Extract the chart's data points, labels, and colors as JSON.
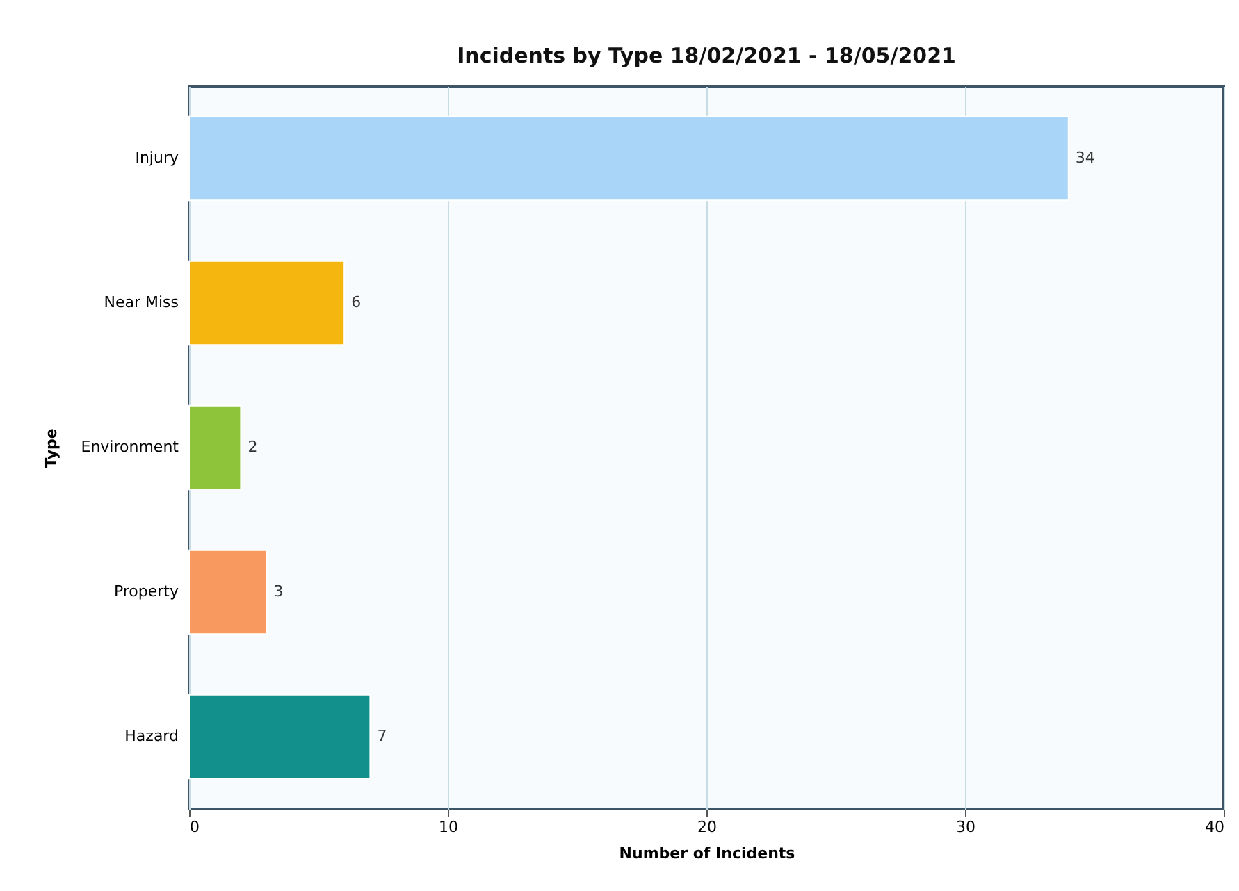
{
  "chart_data": {
    "type": "bar",
    "orientation": "horizontal",
    "title": "Incidents by Type 18/02/2021 - 18/05/2021",
    "xlabel": "Number of Incidents",
    "ylabel": "Type",
    "categories": [
      "Injury",
      "Near Miss",
      "Environment",
      "Property",
      "Hazard"
    ],
    "values": [
      34,
      6,
      2,
      3,
      7
    ],
    "colors": [
      "#a9d5f8",
      "#f5b70f",
      "#8dc43a",
      "#f89a60",
      "#12908c"
    ],
    "xlim": [
      0,
      40
    ],
    "xticks": [
      0,
      10,
      20,
      30,
      40
    ],
    "grid": "x",
    "data_labels": true
  }
}
